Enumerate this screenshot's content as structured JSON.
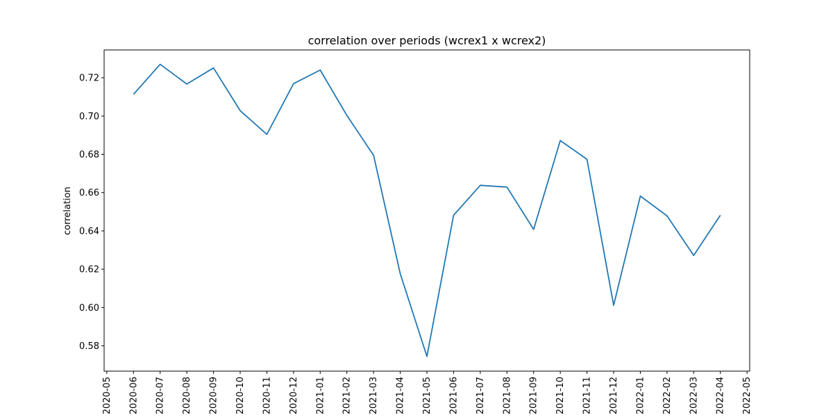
{
  "chart_data": {
    "type": "line",
    "title": "correlation over periods (wcrex1 x wcrex2)",
    "xlabel": "",
    "ylabel": "correlation",
    "x_ticks": [
      "2020-05",
      "2020-06",
      "2020-07",
      "2020-08",
      "2020-09",
      "2020-10",
      "2020-11",
      "2020-12",
      "2021-01",
      "2021-02",
      "2021-03",
      "2021-04",
      "2021-05",
      "2021-06",
      "2021-07",
      "2021-08",
      "2021-09",
      "2021-10",
      "2021-11",
      "2021-12",
      "2022-01",
      "2022-02",
      "2022-03",
      "2022-04",
      "2022-05"
    ],
    "y_ticks": [
      "0.58",
      "0.60",
      "0.62",
      "0.64",
      "0.66",
      "0.68",
      "0.70",
      "0.72"
    ],
    "ylim": [
      0.5668,
      0.7345
    ],
    "xlim": [
      "2020-05",
      "2022-05"
    ],
    "grid": false,
    "line_color": "#1f77b4",
    "series": [
      {
        "x": [
          "2020-06",
          "2020-07",
          "2020-08",
          "2020-09",
          "2020-10",
          "2020-11",
          "2020-12",
          "2021-01",
          "2021-02",
          "2021-03",
          "2021-04",
          "2021-05",
          "2021-06",
          "2021-07",
          "2021-08",
          "2021-09",
          "2021-10",
          "2021-11",
          "2021-12",
          "2022-01",
          "2022-02",
          "2022-03",
          "2022-04"
        ],
        "values": [
          0.7113,
          0.727,
          0.7167,
          0.7251,
          0.7028,
          0.6904,
          0.7169,
          0.724,
          0.7003,
          0.6795,
          0.6177,
          0.5745,
          0.6482,
          0.6638,
          0.6629,
          0.6408,
          0.6872,
          0.6774,
          0.6012,
          0.6582,
          0.6479,
          0.6272,
          0.6482
        ]
      }
    ]
  }
}
